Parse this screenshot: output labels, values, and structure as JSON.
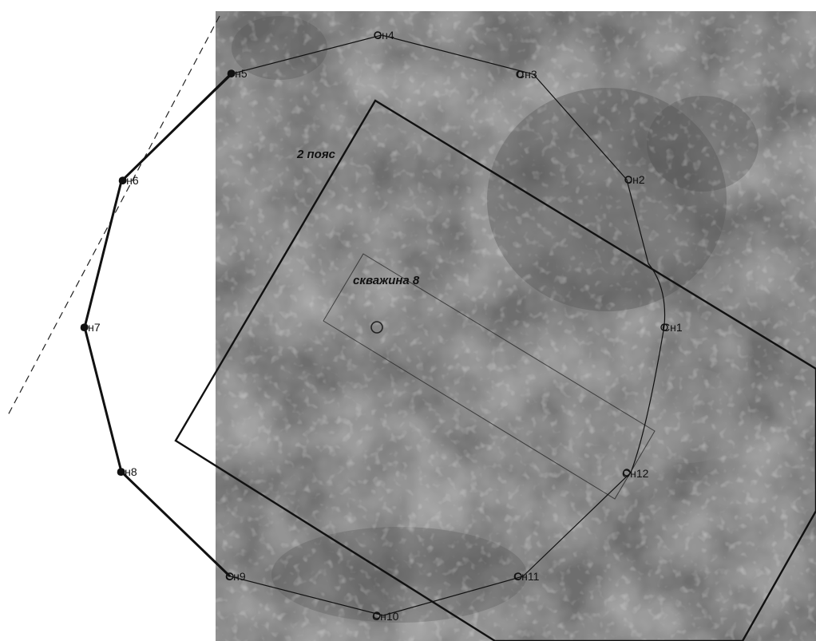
{
  "labels": {
    "zone": "2 пояс",
    "well": "скважина 8"
  },
  "points": [
    {
      "id": "1",
      "label": "Сн1"
    },
    {
      "id": "2",
      "label": "Сн2"
    },
    {
      "id": "3",
      "label": "Сн3"
    },
    {
      "id": "4",
      "label": "Сн4"
    },
    {
      "id": "5",
      "label": "Сн5"
    },
    {
      "id": "6",
      "label": "Сн6"
    },
    {
      "id": "7",
      "label": "Сн7"
    },
    {
      "id": "8",
      "label": "Сн8"
    },
    {
      "id": "9",
      "label": "Сн9"
    },
    {
      "id": "10",
      "label": "Сн10"
    },
    {
      "id": "11",
      "label": "Сн11"
    },
    {
      "id": "12",
      "label": "Сн12"
    }
  ],
  "colors": {
    "aerial": "#7c7c7c",
    "background": "#ffffff",
    "lines": "#111111"
  }
}
